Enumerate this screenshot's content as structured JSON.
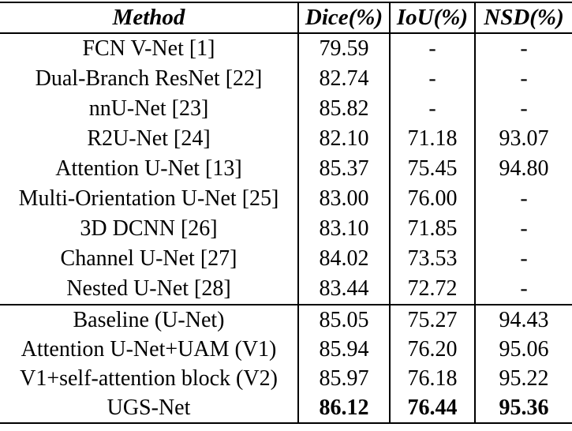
{
  "table": {
    "headers": {
      "method": "Method",
      "dice": "Dice(%)",
      "iou": "IoU(%)",
      "nsd": "NSD(%)"
    },
    "rows": [
      {
        "method": "FCN V-Net [1]",
        "dice": "79.59",
        "iou": "-",
        "nsd": "-"
      },
      {
        "method": "Dual-Branch ResNet [22]",
        "dice": "82.74",
        "iou": "-",
        "nsd": "-"
      },
      {
        "method": "nnU-Net [23]",
        "dice": "85.82",
        "iou": "-",
        "nsd": "-"
      },
      {
        "method": "R2U-Net [24]",
        "dice": "82.10",
        "iou": "71.18",
        "nsd": "93.07"
      },
      {
        "method": "Attention U-Net [13]",
        "dice": "85.37",
        "iou": "75.45",
        "nsd": "94.80"
      },
      {
        "method": "Multi-Orientation U-Net [25]",
        "dice": "83.00",
        "iou": "76.00",
        "nsd": "-"
      },
      {
        "method": "3D DCNN [26]",
        "dice": "83.10",
        "iou": "71.85",
        "nsd": "-"
      },
      {
        "method": "Channel U-Net [27]",
        "dice": "84.02",
        "iou": "73.53",
        "nsd": "-"
      },
      {
        "method": "Nested U-Net [28]",
        "dice": "83.44",
        "iou": "72.72",
        "nsd": "-"
      },
      {
        "method": "Baseline (U-Net)",
        "dice": "85.05",
        "iou": "75.27",
        "nsd": "94.43"
      },
      {
        "method": "Attention U-Net+UAM (V1)",
        "dice": "85.94",
        "iou": "76.20",
        "nsd": "95.06"
      },
      {
        "method": "V1+self-attention block (V2)",
        "dice": "85.97",
        "iou": "76.18",
        "nsd": "95.22"
      },
      {
        "method": "UGS-Net",
        "dice": "86.12",
        "iou": "76.44",
        "nsd": "95.36"
      }
    ]
  }
}
